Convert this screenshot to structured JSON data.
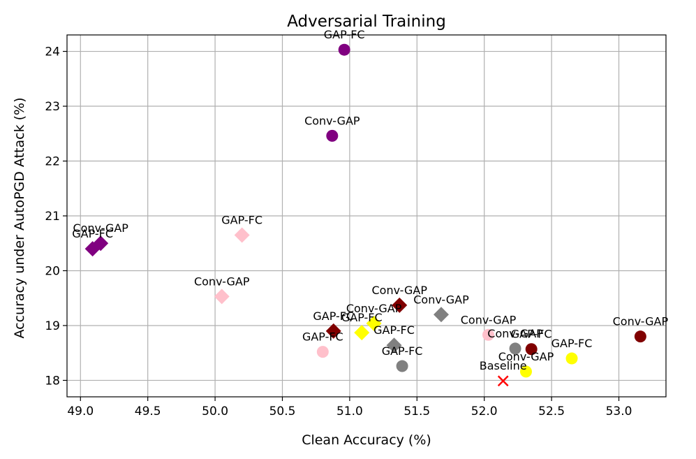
{
  "chart_data": {
    "type": "scatter",
    "title": "Adversarial Training",
    "xlabel": "Clean Accuracy (%)",
    "ylabel": "Accuracy under AutoPGD Attack (%)",
    "xlim": [
      48.9,
      53.35
    ],
    "ylim": [
      17.7,
      24.3
    ],
    "xticks": [
      "49.0",
      "49.5",
      "50.0",
      "50.5",
      "51.0",
      "51.5",
      "52.0",
      "52.5",
      "53.0"
    ],
    "yticks": [
      "18",
      "19",
      "20",
      "21",
      "22",
      "23",
      "24"
    ],
    "grid": true,
    "colors": {
      "purple": "#800080",
      "pink": "#ffc0cb",
      "darkred": "#800000",
      "gray": "#808080",
      "yellow": "#ffff00",
      "red": "#ff0000"
    },
    "points": [
      {
        "x": 50.96,
        "y": 24.03,
        "marker": "circle",
        "color": "#800080",
        "label": "GAP-FC"
      },
      {
        "x": 50.87,
        "y": 22.46,
        "marker": "circle",
        "color": "#800080",
        "label": "Conv-GAP"
      },
      {
        "x": 49.15,
        "y": 20.5,
        "marker": "diamond",
        "color": "#800080",
        "label": "Conv-GAP"
      },
      {
        "x": 49.09,
        "y": 20.4,
        "marker": "diamond",
        "color": "#800080",
        "label": "GAP-FC"
      },
      {
        "x": 50.2,
        "y": 20.65,
        "marker": "diamond",
        "color": "#ffc0cb",
        "label": "GAP-FC"
      },
      {
        "x": 50.05,
        "y": 19.53,
        "marker": "diamond",
        "color": "#ffc0cb",
        "label": "Conv-GAP"
      },
      {
        "x": 50.8,
        "y": 18.52,
        "marker": "circle",
        "color": "#ffc0cb",
        "label": "GAP-FC"
      },
      {
        "x": 52.03,
        "y": 18.83,
        "marker": "circle",
        "color": "#ffc0cb",
        "label": "Conv-GAP"
      },
      {
        "x": 51.37,
        "y": 19.37,
        "marker": "diamond",
        "color": "#800000",
        "label": "Conv-GAP"
      },
      {
        "x": 50.88,
        "y": 18.9,
        "marker": "diamond",
        "color": "#800000",
        "label": "GAP-FC"
      },
      {
        "x": 52.35,
        "y": 18.57,
        "marker": "circle",
        "color": "#800000",
        "label": "GAP-FC"
      },
      {
        "x": 53.16,
        "y": 18.8,
        "marker": "circle",
        "color": "#800000",
        "label": "Conv-GAP"
      },
      {
        "x": 51.68,
        "y": 19.2,
        "marker": "diamond",
        "color": "#808080",
        "label": "Conv-GAP"
      },
      {
        "x": 51.33,
        "y": 18.64,
        "marker": "diamond",
        "color": "#808080",
        "label": "GAP-FC"
      },
      {
        "x": 51.39,
        "y": 18.26,
        "marker": "circle",
        "color": "#808080",
        "label": "GAP-FC"
      },
      {
        "x": 52.23,
        "y": 18.58,
        "marker": "circle",
        "color": "#808080",
        "label": "Conv-GAP"
      },
      {
        "x": 51.18,
        "y": 19.04,
        "marker": "diamond",
        "color": "#ffff00",
        "label": "Conv-GAP"
      },
      {
        "x": 51.09,
        "y": 18.87,
        "marker": "diamond",
        "color": "#ffff00",
        "label": "GAP-FC"
      },
      {
        "x": 52.65,
        "y": 18.4,
        "marker": "circle",
        "color": "#ffff00",
        "label": "GAP-FC"
      },
      {
        "x": 52.31,
        "y": 18.16,
        "marker": "circle",
        "color": "#ffff00",
        "label": "Conv-GAP"
      },
      {
        "x": 52.14,
        "y": 17.99,
        "marker": "x",
        "color": "#ff0000",
        "label": "Baseline"
      }
    ]
  }
}
